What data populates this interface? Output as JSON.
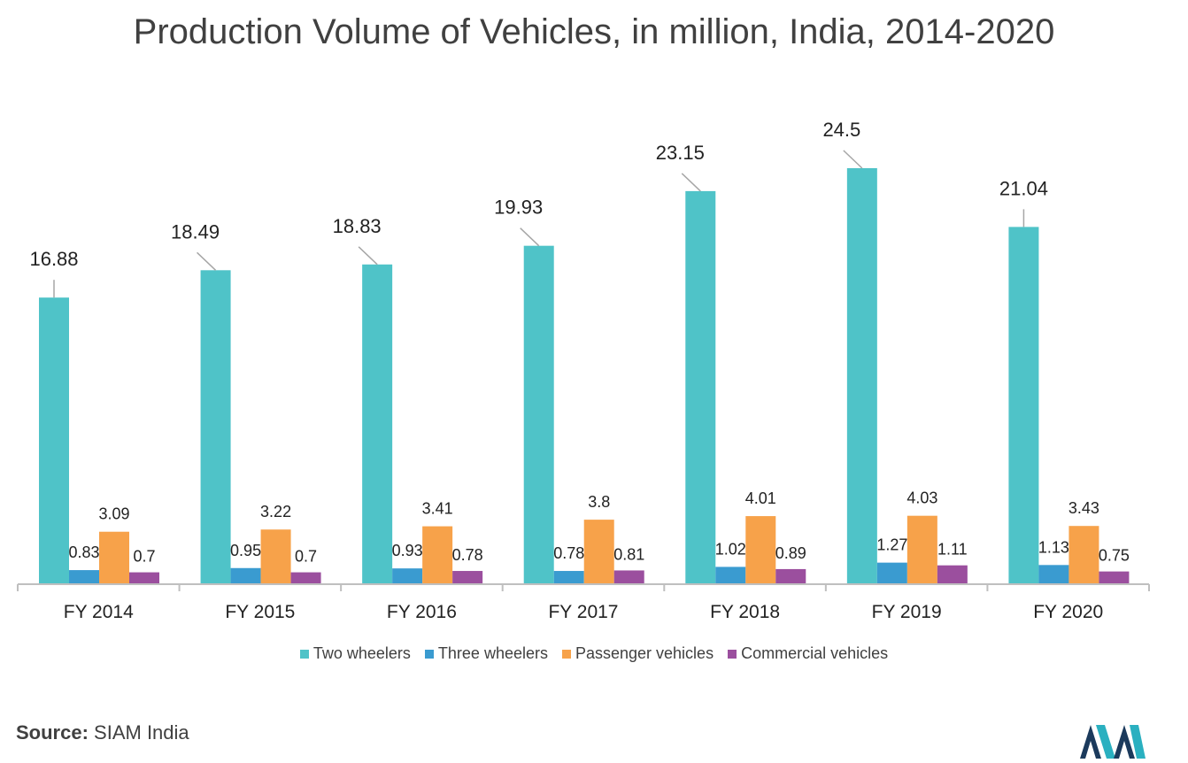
{
  "chart_data": {
    "type": "bar",
    "title": "Production Volume of Vehicles, in million, India, 2014-2020",
    "categories": [
      "FY 2014",
      "FY 2015",
      "FY 2016",
      "FY 2017",
      "FY 2018",
      "FY 2019",
      "FY 2020"
    ],
    "series": [
      {
        "name": "Two wheelers",
        "color": "#4fc3c8",
        "values": [
          16.88,
          18.49,
          18.83,
          19.93,
          23.15,
          24.5,
          21.04
        ]
      },
      {
        "name": "Three wheelers",
        "color": "#3a9bd0",
        "values": [
          0.83,
          0.95,
          0.93,
          0.78,
          1.02,
          1.27,
          1.13
        ]
      },
      {
        "name": "Passenger vehicles",
        "color": "#f7a24a",
        "values": [
          3.09,
          3.22,
          3.41,
          3.8,
          4.01,
          4.03,
          3.43
        ]
      },
      {
        "name": "Commercial vehicles",
        "color": "#9b4f9e",
        "values": [
          0.7,
          0.7,
          0.78,
          0.81,
          0.89,
          1.11,
          0.75
        ]
      }
    ],
    "value_labels": [
      [
        "16.88",
        "18.49",
        "18.83",
        "19.93",
        "23.15",
        "24.5",
        "21.04"
      ],
      [
        "0.83",
        "0.95",
        "0.93",
        "0.78",
        "1.02",
        "1.27",
        "1.13"
      ],
      [
        "3.09",
        "3.22",
        "3.41",
        "3.8",
        "4.01",
        "4.03",
        "3.43"
      ],
      [
        "0.7",
        "0.7",
        "0.78",
        "0.81",
        "0.89",
        "1.11",
        "0.75"
      ]
    ],
    "xlabel": "",
    "ylabel": "",
    "ylim": [
      0,
      24.5
    ],
    "grid": false,
    "legend_position": "bottom"
  },
  "source": {
    "prefix": "Source:",
    "text": "SIAM India"
  },
  "logo": {
    "name": "brand-logo",
    "colors": [
      "#1b3a5c",
      "#2ab0c0"
    ]
  }
}
